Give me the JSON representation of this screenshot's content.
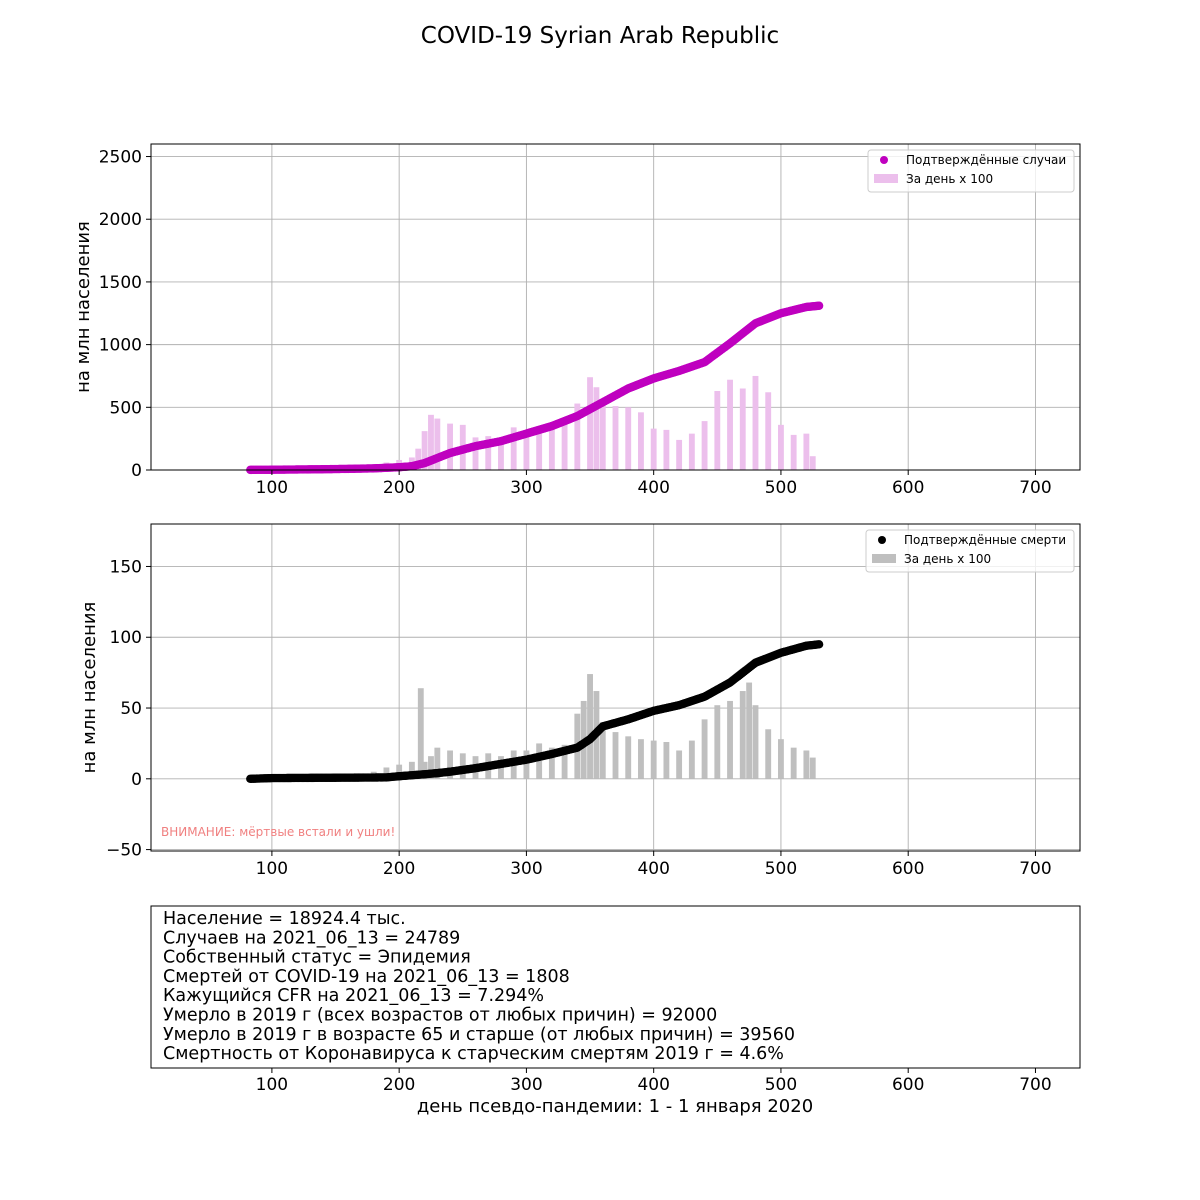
{
  "title": "COVID-19 Syrian Arab Republic",
  "chart_data": [
    {
      "type": "scatter+bar",
      "ylabel": "на млн населения",
      "xlim": [
        5,
        735
      ],
      "ylim": [
        0,
        2600
      ],
      "xticks": [
        100,
        200,
        300,
        400,
        500,
        600,
        700
      ],
      "yticks": [
        0,
        500,
        1000,
        1500,
        2000,
        2500
      ],
      "grid": true,
      "legend_position": "top-right",
      "colors": {
        "points": "#bf00bf",
        "bars": "#ecbfec"
      },
      "series": [
        {
          "name": "Подтверждённые случаи",
          "kind": "scatter",
          "x": [
            83,
            100,
            120,
            140,
            160,
            180,
            200,
            210,
            220,
            230,
            240,
            260,
            280,
            300,
            320,
            340,
            360,
            380,
            400,
            420,
            440,
            460,
            480,
            500,
            520,
            530
          ],
          "y": [
            1,
            2,
            4,
            6,
            9,
            13,
            22,
            30,
            55,
            95,
            135,
            190,
            230,
            290,
            350,
            430,
            540,
            650,
            730,
            790,
            860,
            1010,
            1170,
            1250,
            1300,
            1310
          ]
        },
        {
          "name": "За день х 100",
          "kind": "bar",
          "x": [
            150,
            160,
            170,
            180,
            190,
            200,
            210,
            215,
            220,
            225,
            230,
            240,
            250,
            260,
            270,
            280,
            290,
            300,
            310,
            320,
            330,
            340,
            350,
            355,
            360,
            370,
            380,
            390,
            400,
            410,
            420,
            430,
            440,
            450,
            460,
            470,
            480,
            490,
            500,
            510,
            520,
            525
          ],
          "y": [
            10,
            15,
            30,
            40,
            60,
            80,
            100,
            170,
            310,
            440,
            410,
            370,
            360,
            260,
            270,
            250,
            340,
            270,
            300,
            350,
            380,
            530,
            740,
            660,
            540,
            510,
            500,
            460,
            330,
            320,
            240,
            290,
            390,
            630,
            720,
            650,
            750,
            620,
            360,
            280,
            290,
            110
          ]
        }
      ]
    },
    {
      "type": "scatter+bar",
      "ylabel": "на млн населения",
      "xlim": [
        5,
        735
      ],
      "ylim": [
        -51,
        180
      ],
      "xticks": [
        100,
        200,
        300,
        400,
        500,
        600,
        700
      ],
      "yticks": [
        -50,
        0,
        50,
        100,
        150
      ],
      "grid": true,
      "legend_position": "top-right",
      "annotation": "ВНИМАНИЕ: мёртвые встали и ушли!",
      "colors": {
        "points": "#000000",
        "bars": "#bfbfbf"
      },
      "series": [
        {
          "name": "Подтверждённые смерти",
          "kind": "scatter",
          "x": [
            83,
            100,
            120,
            140,
            160,
            180,
            190,
            200,
            210,
            220,
            230,
            240,
            260,
            280,
            300,
            320,
            340,
            350,
            360,
            380,
            400,
            420,
            440,
            460,
            480,
            500,
            520,
            530
          ],
          "y": [
            0,
            0.5,
            0.6,
            0.7,
            0.8,
            0.9,
            1,
            1.8,
            2.5,
            3.2,
            4,
            5,
            7.5,
            10.5,
            13.5,
            17.5,
            22,
            28,
            37,
            42,
            48,
            52,
            58,
            68,
            82,
            89,
            94,
            95
          ]
        },
        {
          "name": "За день х 100",
          "kind": "bar",
          "x": [
            100,
            150,
            180,
            190,
            200,
            210,
            217,
            220,
            225,
            230,
            240,
            250,
            260,
            270,
            280,
            290,
            300,
            310,
            320,
            330,
            340,
            345,
            350,
            355,
            360,
            370,
            380,
            390,
            400,
            410,
            420,
            430,
            440,
            450,
            460,
            470,
            475,
            480,
            490,
            500,
            510,
            520,
            525
          ],
          "y": [
            2,
            3,
            5,
            8,
            10,
            12,
            64,
            12,
            16,
            22,
            20,
            18,
            16,
            18,
            16,
            20,
            20,
            25,
            22,
            24,
            46,
            55,
            74,
            62,
            40,
            33,
            30,
            28,
            27,
            26,
            20,
            27,
            42,
            52,
            55,
            62,
            68,
            52,
            35,
            28,
            22,
            20,
            15
          ]
        }
      ]
    }
  ],
  "info": {
    "lines": [
      "Население = 18924.4 тыс.",
      "Случаев на 2021_06_13 = 24789",
      "Собственный статус = Эпидемия",
      "Смертей от COVID-19 на 2021_06_13 = 1808",
      "Кажущийся CFR на 2021_06_13 = 7.294%",
      "Умерло в 2019 г (всех возрастов от любых причин) = 92000",
      "Умерло в 2019 г в возрасте 65 и старше (от любых причин) = 39560",
      "Смертность от Коронавируса к старческим смертям 2019 г = 4.6%"
    ],
    "xticks": [
      100,
      200,
      300,
      400,
      500,
      600,
      700
    ],
    "xlabel": "день псевдо-пандемии: 1 - 1 января 2020"
  }
}
